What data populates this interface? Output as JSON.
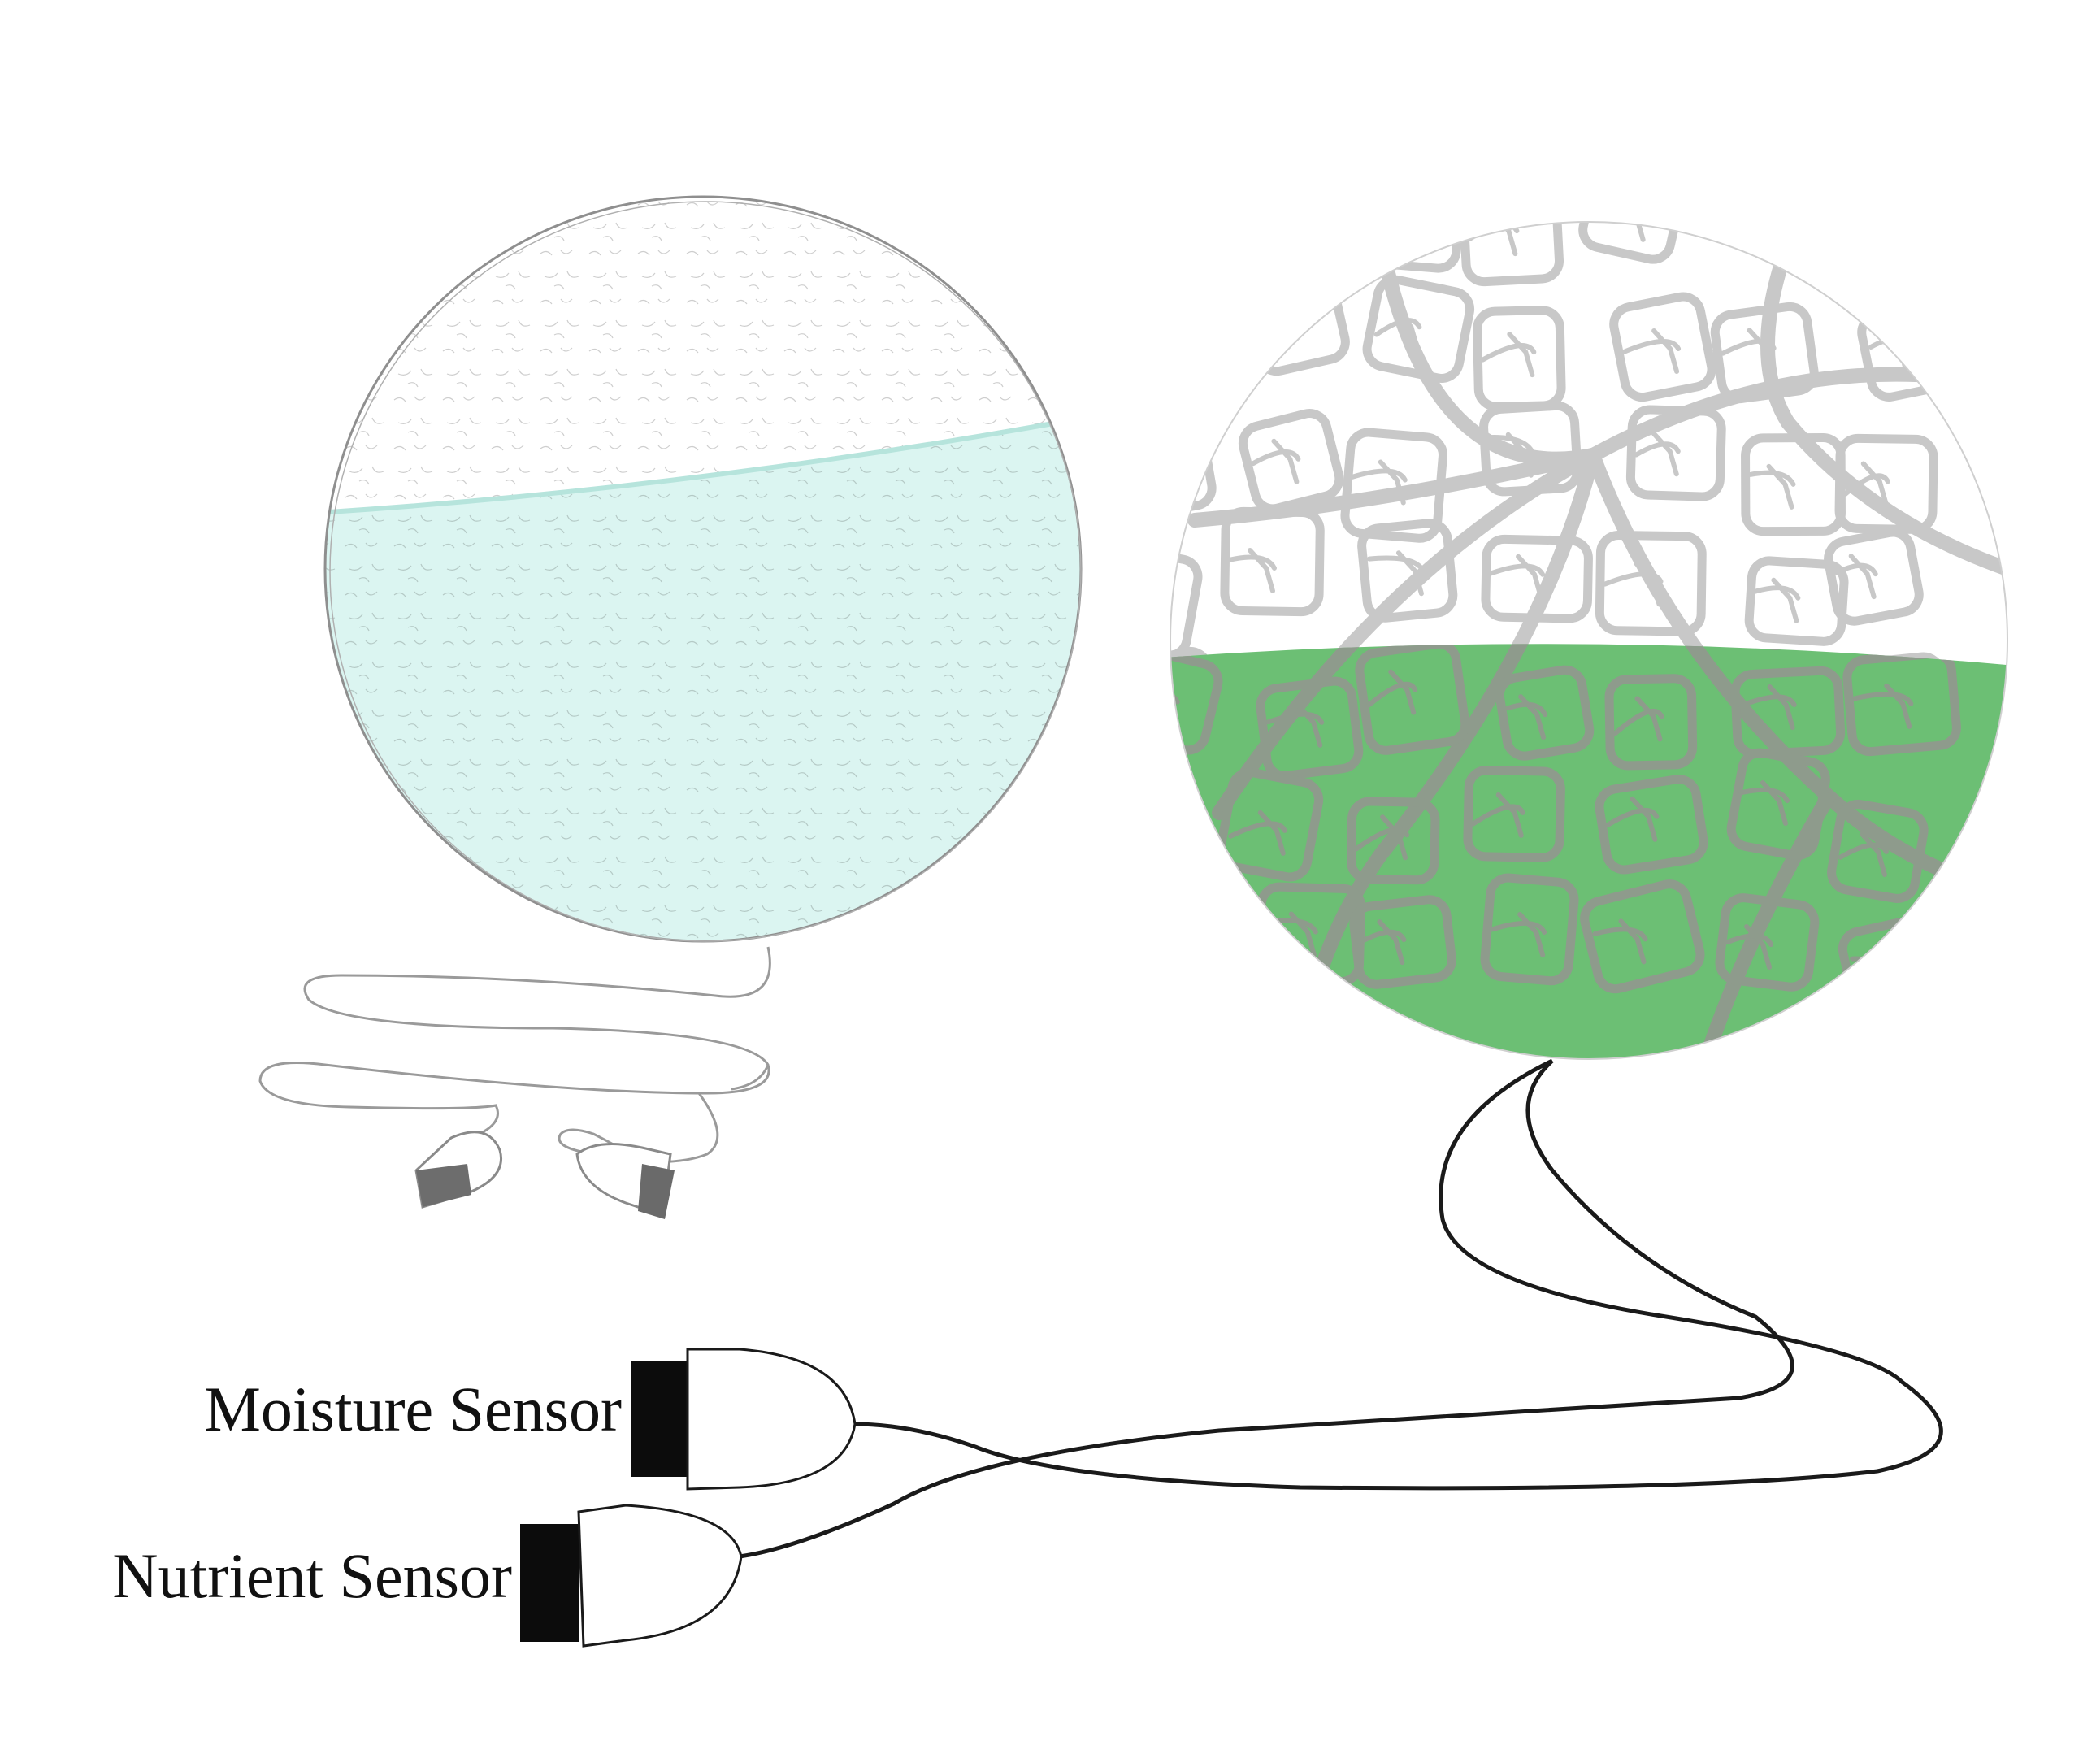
{
  "labels": {
    "moisture_sensor": "Moisture Sensor",
    "nutrient_sensor": "Nutrient Sensor"
  },
  "colors": {
    "sketch_fill": "#d7f4f0",
    "sketch_line": "#9a9a9a",
    "leaf_green": "#6cbf74",
    "vein_gray": "#c8c8c8",
    "vein_on_green": "#8e9b8c",
    "cable": "#1a1a1a",
    "plug_black": "#0c0c0c"
  },
  "icons": {
    "sketch_globe": "pencil-sketch-sphere",
    "leaf_globe": "leaf-vein-sphere",
    "moisture_plug": "sensor-plug",
    "nutrient_plug": "sensor-plug"
  }
}
